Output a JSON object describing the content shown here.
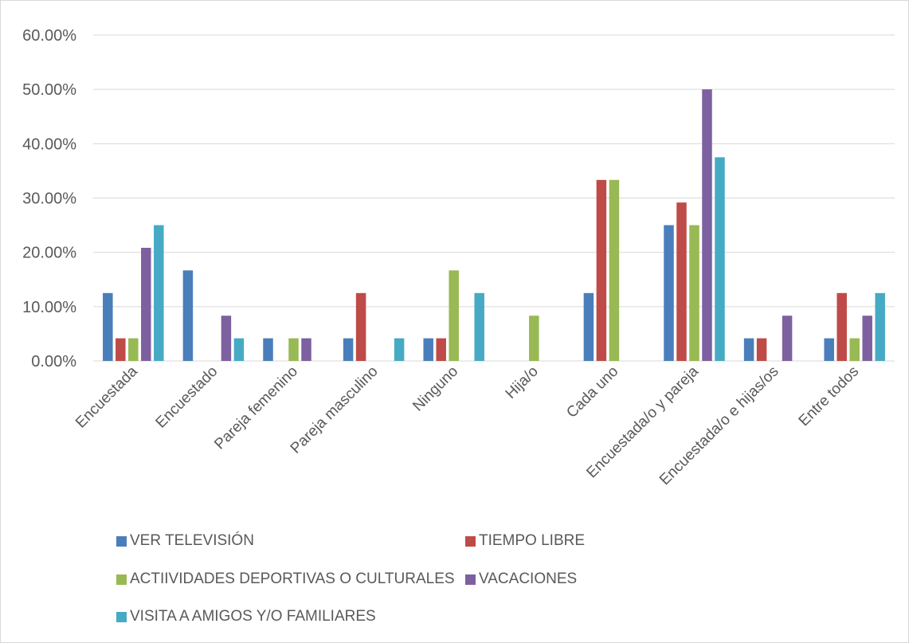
{
  "chart_data": {
    "type": "bar",
    "categories": [
      "Encuestada",
      "Encuestado",
      "Pareja femenino",
      "Pareja masculino",
      "Ninguno",
      "Hija/o",
      "Cada uno",
      "Encuestada/o y pareja",
      "Encuestada/o e hijas/os",
      "Entre todos"
    ],
    "series": [
      {
        "name": "VER TELEVISIÓN",
        "color": "#4a7ebb",
        "values": [
          12.5,
          16.67,
          4.17,
          4.17,
          4.17,
          0,
          12.5,
          25.0,
          4.17,
          4.17
        ]
      },
      {
        "name": "TIEMPO LIBRE",
        "color": "#be4b48",
        "values": [
          4.17,
          0,
          0,
          12.5,
          4.17,
          0,
          33.33,
          29.17,
          4.17,
          12.5
        ]
      },
      {
        "name": "ACTIIVIDADES DEPORTIVAS O CULTURALES",
        "color": "#98b954",
        "values": [
          4.17,
          0,
          4.17,
          0,
          16.67,
          8.33,
          33.33,
          25.0,
          0,
          4.17
        ]
      },
      {
        "name": "VACACIONES",
        "color": "#7d60a0",
        "values": [
          20.83,
          8.33,
          4.17,
          0,
          0,
          0,
          0,
          50.0,
          8.33,
          8.33
        ]
      },
      {
        "name": "VISITA A AMIGOS Y/O FAMILIARES",
        "color": "#46aac5",
        "values": [
          25.0,
          4.17,
          0,
          4.17,
          12.5,
          0,
          0,
          37.5,
          0,
          12.5
        ]
      }
    ],
    "yticks": [
      "0.00%",
      "10.00%",
      "20.00%",
      "30.00%",
      "40.00%",
      "50.00%",
      "60.00%"
    ],
    "ylim": [
      0,
      60
    ],
    "grid": true,
    "legend_position": "bottom",
    "title": "",
    "xlabel": "",
    "ylabel": ""
  }
}
